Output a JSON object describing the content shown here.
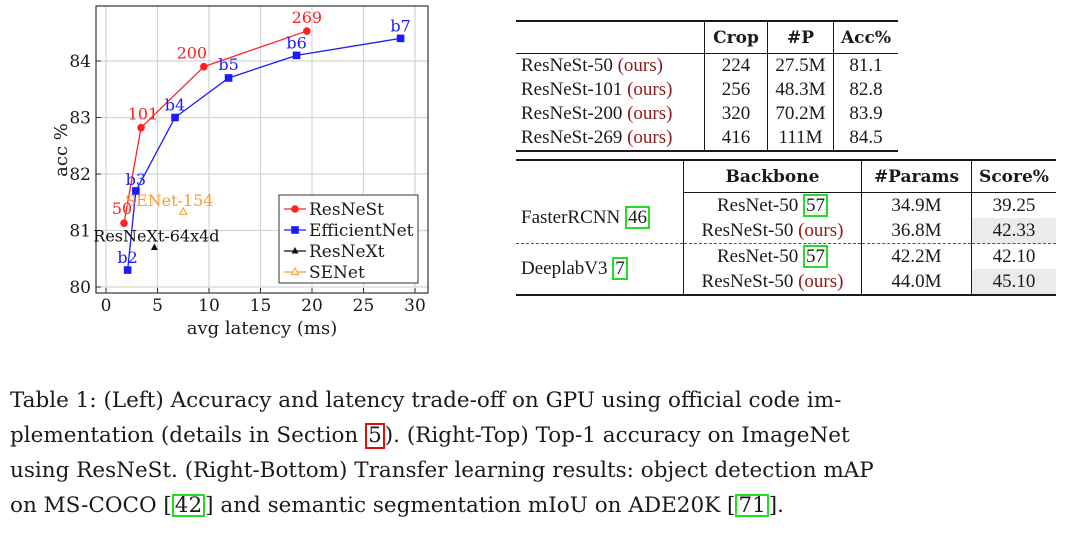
{
  "chart_data": {
    "type": "line",
    "title": "",
    "xlabel": "avg latency (ms)",
    "ylabel": "acc %",
    "xlim": [
      -1,
      31.2
    ],
    "ylim": [
      79.9,
      85.0
    ],
    "xticks": [
      0,
      5,
      10,
      15,
      20,
      25,
      30
    ],
    "yticks": [
      80,
      81,
      82,
      83,
      84
    ],
    "grid": true,
    "legend_position": "lower right",
    "legend": [
      "ResNeSt",
      "EfficientNet",
      "ResNeXt",
      "SENet"
    ],
    "series": [
      {
        "name": "ResNeSt",
        "color": "#ff2020",
        "marker": "circle",
        "points": [
          {
            "label": "50",
            "x": 1.75,
            "y": 81.13
          },
          {
            "label": "101",
            "x": 3.4,
            "y": 82.82
          },
          {
            "label": "200",
            "x": 9.5,
            "y": 83.9
          },
          {
            "label": "269",
            "x": 19.5,
            "y": 84.53
          }
        ]
      },
      {
        "name": "EfficientNet",
        "color": "#1a1aff",
        "marker": "square",
        "points": [
          {
            "label": "b2",
            "x": 2.1,
            "y": 80.3
          },
          {
            "label": "b3",
            "x": 2.9,
            "y": 81.7
          },
          {
            "label": "b4",
            "x": 6.7,
            "y": 83.0
          },
          {
            "label": "b5",
            "x": 11.9,
            "y": 83.7
          },
          {
            "label": "b6",
            "x": 18.5,
            "y": 84.1
          },
          {
            "label": "b7",
            "x": 28.6,
            "y": 84.4
          }
        ]
      },
      {
        "name": "ResNeXt",
        "color": "#111111",
        "marker": "triangle",
        "points": [
          {
            "label": "ResNeXt-64x4d",
            "x": 4.7,
            "y": 80.7
          }
        ]
      },
      {
        "name": "SENet",
        "color": "#ff9933",
        "marker": "triangle-open",
        "points": [
          {
            "label": "SENet-154",
            "x": 7.5,
            "y": 81.33
          }
        ]
      }
    ]
  },
  "table_top": {
    "headers": [
      "",
      "Crop",
      "#P",
      "Acc%"
    ],
    "ours_label": "(ours)",
    "rows": [
      {
        "model": "ResNeSt-50",
        "crop": "224",
        "params": "27.5M",
        "acc": "81.1"
      },
      {
        "model": "ResNeSt-101",
        "crop": "256",
        "params": "48.3M",
        "acc": "82.8"
      },
      {
        "model": "ResNeSt-200",
        "crop": "320",
        "params": "70.2M",
        "acc": "83.9"
      },
      {
        "model": "ResNeSt-269",
        "crop": "416",
        "params": "111M",
        "acc": "84.5"
      }
    ]
  },
  "table_bottom": {
    "headers": [
      "",
      "Backbone",
      "#Params",
      "Score%"
    ],
    "groups": [
      {
        "method": "FasterRCNN",
        "ref": "46",
        "rows": [
          {
            "backbone": "ResNet-50",
            "ref": "57",
            "ours": false,
            "params": "34.9M",
            "score": "39.25",
            "highlight": false
          },
          {
            "backbone": "ResNeSt-50",
            "ours_label": "(ours)",
            "ours": true,
            "params": "36.8M",
            "score": "42.33",
            "highlight": true
          }
        ]
      },
      {
        "method": "DeeplabV3",
        "ref": "7",
        "rows": [
          {
            "backbone": "ResNet-50",
            "ref": "57",
            "ours": false,
            "params": "42.2M",
            "score": "42.10",
            "highlight": false
          },
          {
            "backbone": "ResNeSt-50",
            "ours_label": "(ours)",
            "ours": true,
            "params": "44.0M",
            "score": "45.10",
            "highlight": true
          }
        ]
      }
    ]
  },
  "caption": {
    "line1": "Table 1: (Left) Accuracy and latency trade-off on GPU using official code im-",
    "line2_a": "plementation (details in Section ",
    "line2_ref": "5",
    "line2_b": "). (Right-Top) Top-1 accuracy on ImageNet",
    "line3": "using ResNeSt. (Right-Bottom) Transfer learning results: object detection mAP",
    "line4_a": "on MS-COCO [",
    "line4_ref1": "42",
    "line4_b": "] and semantic segmentation mIoU on ADE20K [",
    "line4_ref2": "71",
    "line4_c": "]."
  }
}
